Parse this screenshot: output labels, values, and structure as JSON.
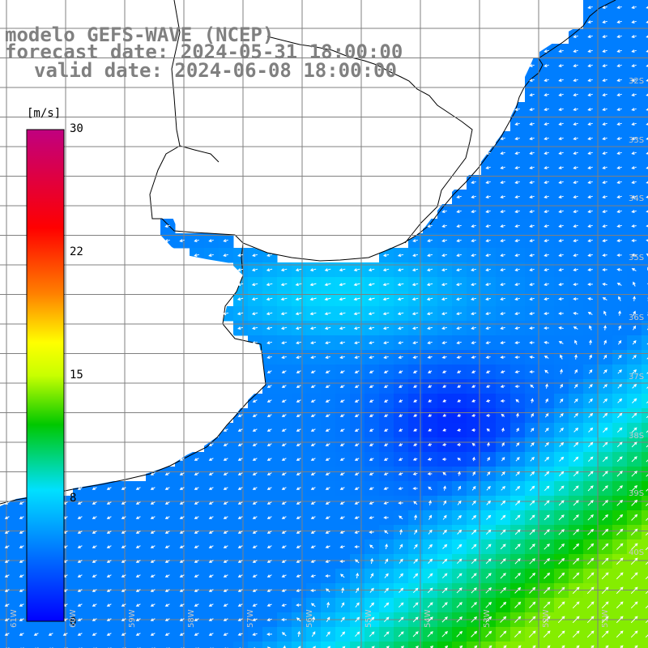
{
  "title": {
    "line1": "modelo GEFS-WAVE (NCEP)",
    "line2": "forecast date: 2024-05-31 18:00:00",
    "line3": "valid date: 2024-06-08 18:00:00"
  },
  "colorbar": {
    "unit": "[m/s]",
    "ticks": [
      {
        "value": 30,
        "label": "30"
      },
      {
        "value": 22,
        "label": "22"
      },
      {
        "value": 15,
        "label": "15"
      },
      {
        "value": 8,
        "label": "8"
      },
      {
        "value": 0,
        "label": "0"
      }
    ],
    "min": 0,
    "max": 30,
    "stops": [
      {
        "v": 0,
        "color": "#0000ff"
      },
      {
        "v": 8,
        "color": "#00e0ff"
      },
      {
        "v": 12,
        "color": "#00c800"
      },
      {
        "v": 15,
        "color": "#c8ff00"
      },
      {
        "v": 17,
        "color": "#ffff00"
      },
      {
        "v": 20,
        "color": "#ff8000"
      },
      {
        "v": 24,
        "color": "#ff0000"
      },
      {
        "v": 30,
        "color": "#c00080"
      }
    ]
  },
  "map": {
    "variable": "wind speed",
    "lat_labels": [
      "32S",
      "33S",
      "34S",
      "35S",
      "36S",
      "37S",
      "38S",
      "39S",
      "40S"
    ],
    "lon_labels": [
      "61W",
      "60W",
      "59W",
      "58W",
      "57W",
      "56W",
      "55W",
      "54W",
      "53W",
      "52W",
      "51W"
    ],
    "land_color": "#ffffff",
    "coast_color": "#000000",
    "grid_color": "#808080",
    "arrow_color": "#ffffff"
  }
}
